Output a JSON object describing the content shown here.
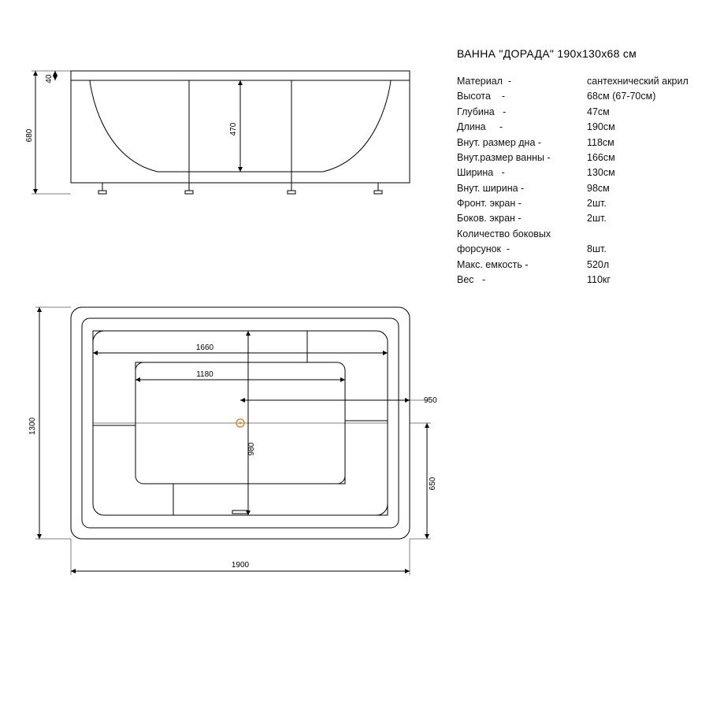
{
  "title": "ВАННА \"ДОРАДА\" 190х130х68 см",
  "specs": [
    {
      "label": "Материал  -",
      "value": "сантехнический акрил"
    },
    {
      "label": "Высота    -",
      "value": "68см (67-70см)"
    },
    {
      "label": "Глубина   -",
      "value": "47см"
    },
    {
      "label": "Длина     -",
      "value": "190см"
    },
    {
      "label": "Внут. размер дна -",
      "value": "118см"
    },
    {
      "label": "Внут.размер ванны -",
      "value": "166см"
    },
    {
      "label": "Ширина   -",
      "value": "130см"
    },
    {
      "label": "Внут. ширина -",
      "value": " 98см"
    },
    {
      "label": "Фронт. экран -",
      "value": "  2шт."
    },
    {
      "label": "Боков. экран -",
      "value": "  2шт."
    },
    {
      "label": "Количество боковых",
      "value": ""
    },
    {
      "label": "форсунок  -",
      "value": "  8шт."
    },
    {
      "label": "Макс. емкость -",
      "value": "520л"
    },
    {
      "label": "Вес   -",
      "value": "110кг"
    }
  ],
  "drawing": {
    "type": "engineering-diagram",
    "stroke": "#000000",
    "stroke_width": 1,
    "accent_color": "#d98c2e",
    "background": "#ffffff",
    "label_fontsize": 10,
    "views": {
      "side": {
        "dims": {
          "height_total": "680",
          "lip": "40",
          "depth": "470"
        }
      },
      "top": {
        "dims": {
          "length": "1900",
          "width": "1300",
          "inner_length": "1660",
          "bottom_length": "1180",
          "inner_width": "980",
          "side_offset": "950",
          "half_width": "650"
        }
      }
    }
  }
}
